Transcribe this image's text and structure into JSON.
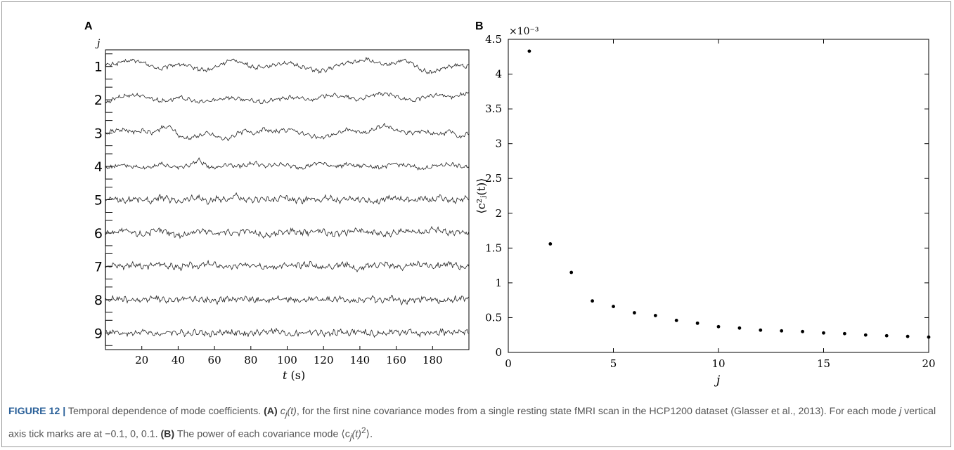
{
  "chart_data": [
    {
      "panel": "A",
      "type": "line",
      "ylabel": "j",
      "xlabel_var": "t",
      "xlabel_unit": " (s)",
      "xlim": [
        0,
        200
      ],
      "x_ticks": [
        20,
        40,
        60,
        80,
        100,
        120,
        140,
        160,
        180
      ],
      "series_labels": [
        "1",
        "2",
        "3",
        "4",
        "5",
        "6",
        "7",
        "8",
        "9"
      ],
      "series_y_ticks": [
        -0.1,
        0,
        0.1
      ],
      "series": [
        {
          "name": "1",
          "values": [
            0.01,
            0.02,
            0.04,
            0.05,
            0.03,
            0.0,
            -0.02,
            0.01,
            0.02,
            0.0,
            -0.02,
            -0.03,
            0.0,
            0.04,
            0.05,
            0.02,
            -0.01,
            0.0,
            0.01,
            0.03,
            0.02,
            0.0,
            -0.02,
            -0.04,
            -0.02,
            0.01,
            0.03,
            0.04,
            0.06,
            0.03,
            0.01,
            0.03,
            0.05,
            0.02,
            -0.03,
            -0.05,
            -0.02,
            0.0,
            0.01,
            0.0
          ]
        },
        {
          "name": "2",
          "values": [
            -0.03,
            0.01,
            0.03,
            0.04,
            0.03,
            0.01,
            -0.01,
            0.0,
            0.02,
            0.0,
            -0.02,
            -0.01,
            0.0,
            0.02,
            0.01,
            0.0,
            -0.01,
            -0.02,
            0.0,
            0.01,
            0.02,
            0.01,
            0.0,
            0.02,
            0.04,
            0.03,
            0.02,
            0.0,
            0.02,
            0.04,
            0.05,
            0.03,
            0.01,
            -0.01,
            0.02,
            0.03,
            0.04,
            0.02,
            0.04,
            0.05
          ]
        },
        {
          "name": "3",
          "values": [
            0.0,
            0.02,
            0.03,
            0.01,
            0.02,
            0.0,
            0.04,
            0.05,
            -0.03,
            -0.04,
            -0.02,
            0.0,
            -0.03,
            -0.05,
            -0.01,
            0.02,
            0.0,
            0.03,
            0.01,
            0.02,
            0.03,
            0.0,
            -0.02,
            -0.04,
            -0.02,
            0.0,
            0.03,
            0.01,
            0.0,
            0.04,
            0.06,
            0.03,
            0.01,
            0.0,
            0.02,
            0.0,
            -0.01,
            0.02,
            -0.04,
            0.0
          ]
        },
        {
          "name": "4",
          "values": [
            -0.01,
            0.0,
            0.01,
            0.0,
            -0.01,
            0.0,
            0.02,
            0.0,
            -0.01,
            0.01,
            0.05,
            0.0,
            -0.01,
            0.02,
            0.0,
            0.01,
            0.03,
            0.0,
            0.01,
            0.02,
            0.0,
            -0.01,
            0.01,
            0.03,
            0.01,
            0.0,
            0.02,
            0.0,
            0.01,
            -0.01,
            0.0,
            0.02,
            0.01,
            0.0,
            -0.02,
            0.0,
            0.01,
            0.02,
            0.0,
            -0.01
          ]
        },
        {
          "name": "5",
          "values": [
            0.0,
            0.01,
            -0.01,
            0.01,
            0.0,
            -0.01,
            0.02,
            0.0,
            -0.01,
            0.01,
            0.02,
            -0.02,
            0.01,
            0.0,
            0.03,
            -0.01,
            0.0,
            0.01,
            -0.01,
            0.02,
            0.0,
            -0.01,
            0.01,
            0.0,
            0.02,
            -0.01,
            0.0,
            0.01,
            0.0,
            -0.02,
            0.01,
            0.02,
            0.0,
            -0.01,
            0.01,
            0.0,
            0.02,
            -0.01,
            0.0,
            0.01
          ]
        },
        {
          "name": "6",
          "values": [
            0.0,
            0.01,
            0.02,
            0.0,
            -0.01,
            0.01,
            0.02,
            0.0,
            -0.02,
            0.0,
            0.02,
            0.01,
            0.0,
            0.01,
            -0.01,
            0.02,
            0.0,
            -0.02,
            -0.01,
            0.01,
            0.02,
            0.0,
            0.01,
            0.02,
            0.0,
            -0.01,
            0.01,
            0.03,
            0.0,
            0.01,
            -0.01,
            0.0,
            0.01,
            0.02,
            0.0,
            0.03,
            0.02,
            0.0,
            0.01,
            0.0
          ]
        },
        {
          "name": "7",
          "values": [
            0.0,
            0.01,
            0.0,
            0.02,
            -0.01,
            0.01,
            0.02,
            0.0,
            -0.01,
            0.01,
            0.0,
            0.02,
            0.01,
            -0.01,
            0.0,
            0.01,
            0.02,
            0.0,
            -0.01,
            0.01,
            0.0,
            0.01,
            0.02,
            -0.01,
            0.0,
            0.01,
            0.02,
            -0.03,
            0.0,
            0.01,
            0.02,
            0.0,
            -0.01,
            0.01,
            0.02,
            0.0,
            0.01,
            0.02,
            0.0,
            -0.01
          ]
        },
        {
          "name": "8",
          "values": [
            0.0,
            0.01,
            0.0,
            -0.01,
            0.0,
            0.01,
            0.0,
            -0.01,
            0.0,
            0.01,
            0.0,
            0.0,
            -0.01,
            0.01,
            0.0,
            0.02,
            0.0,
            -0.01,
            0.0,
            0.01,
            0.0,
            -0.01,
            0.01,
            0.0,
            0.0,
            0.01,
            0.0,
            -0.01,
            0.01,
            0.0,
            0.0,
            0.01,
            -0.02,
            0.0,
            0.01,
            0.0,
            -0.01,
            0.0,
            0.01,
            0.0
          ]
        },
        {
          "name": "9",
          "values": [
            0.0,
            0.01,
            -0.01,
            0.0,
            0.01,
            0.0,
            -0.01,
            0.01,
            0.0,
            0.0,
            0.01,
            -0.01,
            0.0,
            0.01,
            0.0,
            -0.01,
            0.0,
            0.01,
            0.02,
            0.0,
            -0.01,
            0.0,
            0.01,
            0.0,
            -0.01,
            0.01,
            0.0,
            0.01,
            0.0,
            -0.01,
            0.0,
            0.01,
            0.0,
            0.01,
            -0.01,
            0.0,
            0.01,
            0.0,
            0.01,
            0.0
          ]
        }
      ]
    },
    {
      "panel": "B",
      "type": "scatter",
      "xlabel": "j",
      "ylabel": "⟨c²ⱼ(t)⟩",
      "y_multiplier": "×10⁻³",
      "xlim": [
        0,
        20
      ],
      "ylim": [
        0,
        4.5
      ],
      "x_ticks": [
        0,
        5,
        10,
        15,
        20
      ],
      "y_ticks": [
        0,
        0.5,
        1,
        1.5,
        2,
        2.5,
        3,
        3.5,
        4,
        4.5
      ],
      "x": [
        1,
        2,
        3,
        4,
        5,
        6,
        7,
        8,
        9,
        10,
        11,
        12,
        13,
        14,
        15,
        16,
        17,
        18,
        19,
        20
      ],
      "y": [
        4.33,
        1.56,
        1.15,
        0.74,
        0.66,
        0.57,
        0.53,
        0.46,
        0.42,
        0.37,
        0.35,
        0.32,
        0.31,
        0.3,
        0.28,
        0.27,
        0.25,
        0.24,
        0.23,
        0.22
      ]
    }
  ],
  "figure": {
    "panel_a_letter": "A",
    "panel_b_letter": "B"
  },
  "caption": {
    "lead": "FIGURE 12 |",
    "t1": " Temporal dependence of mode coefficients. ",
    "a_ref": "(A)",
    "t2_c": " c",
    "t2_j": "j",
    "t2_t": "(t)",
    "t3": ", for the first nine covariance modes from a single resting state fMRI scan in the HCP1200 dataset (Glasser et al., 2013). For each mode ",
    "t4_j": "j",
    "t5": " vertical axis tick marks are at −0.1, 0, 0.1. ",
    "b_ref": "(B)",
    "t6": " The power of each covariance mode ⟨c",
    "t6_j": "j",
    "t6_t": "(t)",
    "t6_sup": "2",
    "t7": "⟩."
  }
}
